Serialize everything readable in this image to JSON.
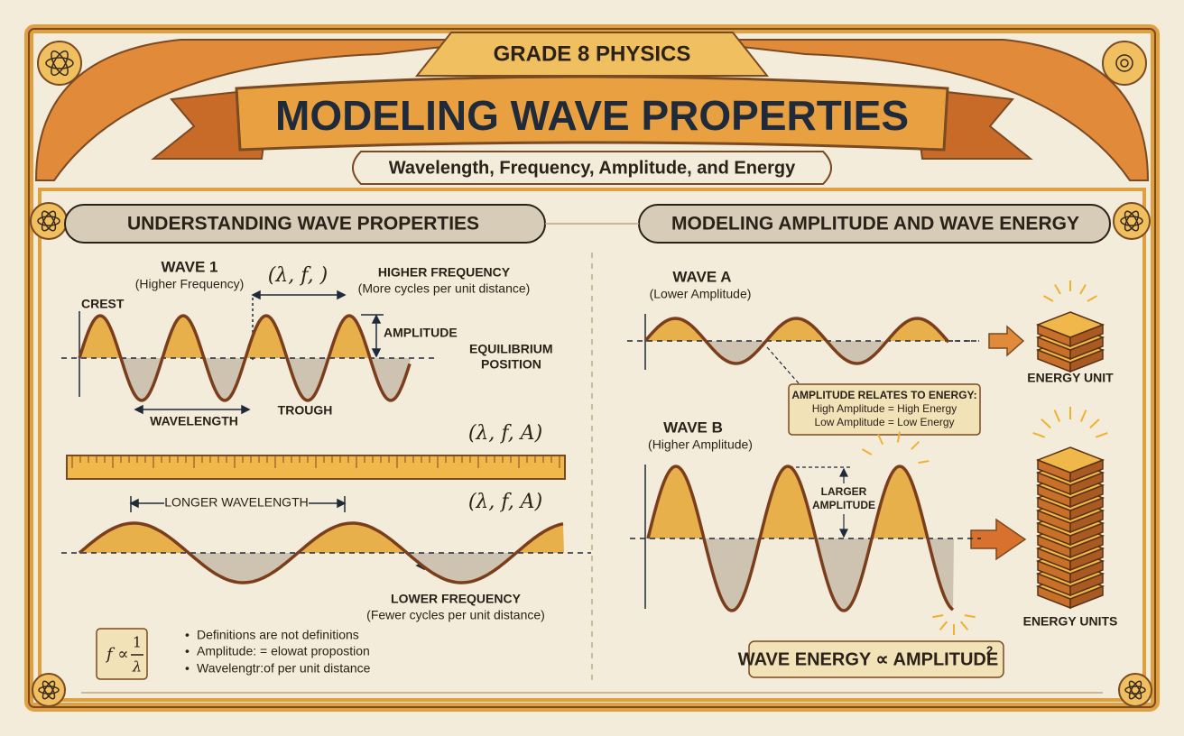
{
  "header": {
    "grade": "GRADE 8 PHYSICS",
    "title": "MODELING WAVE PROPERTIES",
    "subtitle": "Wavelength, Frequency, Amplitude, and Energy"
  },
  "left": {
    "heading": "UNDERSTANDING WAVE PROPERTIES",
    "wave1": {
      "label": "WAVE 1",
      "sublabel": "(Higher Frequency)",
      "notation": "(λ, f, )",
      "freq_label": "HIGHER FREQUENCY",
      "freq_note": "(More cycles per unit distance)",
      "crest": "CREST",
      "amplitude": "AMPLITUDE",
      "equilibrium": [
        "EQUILIBRIUM",
        "POSITION"
      ],
      "wavelength": "WAVELENGTH",
      "trough": "TROUGH"
    },
    "notation_mid": "(λ, f, A)",
    "wave2": {
      "notation": "(λ, f, A)",
      "wavelength": "LONGER WAVELENGTH",
      "freq_label": "LOWER FREQUENCY",
      "freq_note": "(Fewer cycles per unit distance)"
    },
    "formula": {
      "lhs": "f ∝",
      "numerator": "1",
      "denominator": "λ"
    },
    "bullets": [
      "Definitions are not definitions",
      "Amplitude: = elowat propostion",
      "Wavelengtr:of per unit distance"
    ]
  },
  "right": {
    "heading": "MODELING AMPLITUDE AND WAVE ENERGY",
    "waveA": {
      "label": "WAVE A",
      "sublabel": "(Lower Amplitude)",
      "energy": "ENERGY UNIT"
    },
    "note": [
      "AMPLITUDE RELATES TO ENERGY:",
      "High Amplitude = High Energy",
      "Low Amplitude = Low Energy"
    ],
    "waveB": {
      "label": "WAVE B",
      "sublabel": "(Higher Amplitude)",
      "larger": [
        "LARGER",
        "AMPLITUDE"
      ],
      "energy": "ENERGY UNITS"
    },
    "law": {
      "text": "WAVE ENERGY ∝ AMPLITUDE",
      "exponent": "2"
    }
  }
}
